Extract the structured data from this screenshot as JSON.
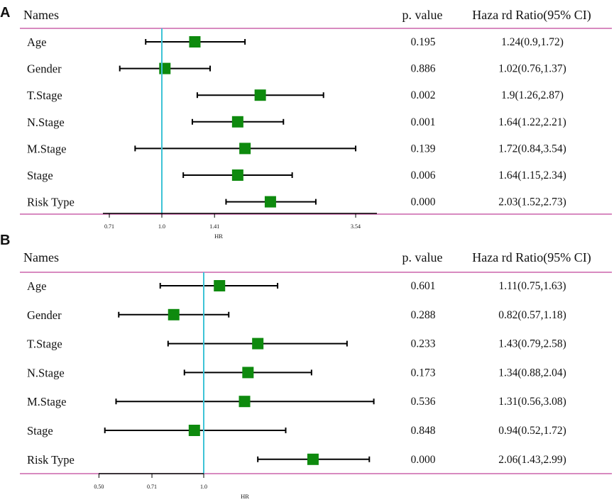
{
  "chart_data": [
    {
      "type": "forest",
      "panel_label": "A",
      "headers": {
        "names": "Names",
        "pvalue": "p. value",
        "hr": "Haza rd Ratio(95% CI)"
      },
      "axis": {
        "label": "HR",
        "scale": "log",
        "ticks": [
          0.71,
          1.0,
          1.41,
          3.54
        ],
        "tick_labels": [
          "0.71",
          "1.0",
          "1.41",
          "3.54"
        ],
        "reference": 1.0
      },
      "rows": [
        {
          "name": "Age",
          "hr": 1.24,
          "lower": 0.9,
          "upper": 1.72,
          "pvalue": "0.195",
          "ci_text": "1.24(0.9,1.72)"
        },
        {
          "name": "Gender",
          "hr": 1.02,
          "lower": 0.76,
          "upper": 1.37,
          "pvalue": "0.886",
          "ci_text": "1.02(0.76,1.37)"
        },
        {
          "name": "T.Stage",
          "hr": 1.9,
          "lower": 1.26,
          "upper": 2.87,
          "pvalue": "0.002",
          "ci_text": "1.9(1.26,2.87)"
        },
        {
          "name": "N.Stage",
          "hr": 1.64,
          "lower": 1.22,
          "upper": 2.21,
          "pvalue": "0.001",
          "ci_text": "1.64(1.22,2.21)"
        },
        {
          "name": "M.Stage",
          "hr": 1.72,
          "lower": 0.84,
          "upper": 3.54,
          "pvalue": "0.139",
          "ci_text": "1.72(0.84,3.54)"
        },
        {
          "name": "Stage",
          "hr": 1.64,
          "lower": 1.15,
          "upper": 2.34,
          "pvalue": "0.006",
          "ci_text": "1.64(1.15,2.34)"
        },
        {
          "name": "Risk Type",
          "hr": 2.03,
          "lower": 1.52,
          "upper": 2.73,
          "pvalue": "0.000",
          "ci_text": "2.03(1.52,2.73)"
        }
      ]
    },
    {
      "type": "forest",
      "panel_label": "B",
      "headers": {
        "names": "Names",
        "pvalue": "p. value",
        "hr": "Haza rd Ratio(95% CI)"
      },
      "axis": {
        "label": "HR",
        "scale": "log",
        "ticks": [
          0.5,
          0.71,
          1.0
        ],
        "tick_labels": [
          "0.50",
          "0.71",
          "1.0"
        ],
        "reference": 1.0
      },
      "rows": [
        {
          "name": "Age",
          "hr": 1.11,
          "lower": 0.75,
          "upper": 1.63,
          "pvalue": "0.601",
          "ci_text": "1.11(0.75,1.63)"
        },
        {
          "name": "Gender",
          "hr": 0.82,
          "lower": 0.57,
          "upper": 1.18,
          "pvalue": "0.288",
          "ci_text": "0.82(0.57,1.18)"
        },
        {
          "name": "T.Stage",
          "hr": 1.43,
          "lower": 0.79,
          "upper": 2.58,
          "pvalue": "0.233",
          "ci_text": "1.43(0.79,2.58)"
        },
        {
          "name": "N.Stage",
          "hr": 1.34,
          "lower": 0.88,
          "upper": 2.04,
          "pvalue": "0.173",
          "ci_text": "1.34(0.88,2.04)"
        },
        {
          "name": "M.Stage",
          "hr": 1.31,
          "lower": 0.56,
          "upper": 3.08,
          "pvalue": "0.536",
          "ci_text": "1.31(0.56,3.08)"
        },
        {
          "name": "Stage",
          "hr": 0.94,
          "lower": 0.52,
          "upper": 1.72,
          "pvalue": "0.848",
          "ci_text": "0.94(0.52,1.72)"
        },
        {
          "name": "Risk Type",
          "hr": 2.06,
          "lower": 1.43,
          "upper": 2.99,
          "pvalue": "0.000",
          "ci_text": "2.06(1.43,2.99)"
        }
      ]
    }
  ],
  "colors": {
    "rule": "#c0449a",
    "reference_line": "#3ec3d6",
    "marker": "#0e8a0e",
    "ci_line": "#000000"
  }
}
